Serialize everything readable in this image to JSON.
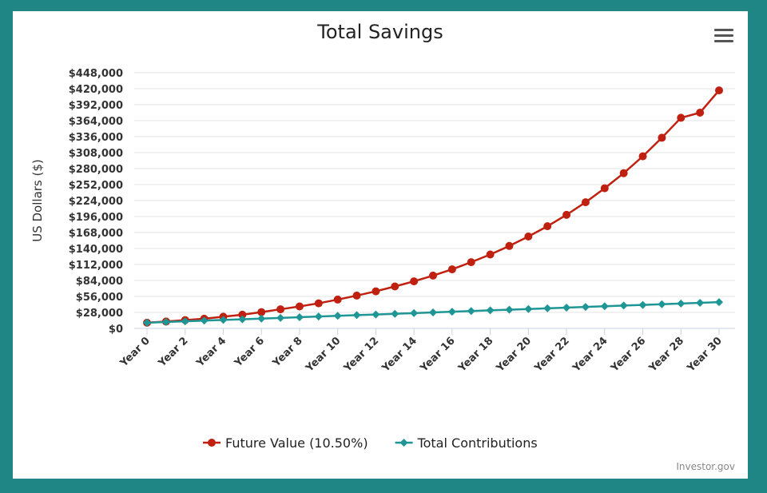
{
  "colors": {
    "frame": "#1f8585",
    "future_value": "#c0200f",
    "contributions": "#1e9696"
  },
  "menu": {
    "icon": "menu-icon"
  },
  "credit": "Investor.gov",
  "chart_data": {
    "type": "line",
    "title": "Total Savings",
    "ylabel": "US Dollars ($)",
    "xlabel": "",
    "ylim": [
      0,
      448000
    ],
    "y_ticks": [
      "$0",
      "$28,000",
      "$56,000",
      "$84,000",
      "$112,000",
      "$140,000",
      "$168,000",
      "$196,000",
      "$224,000",
      "$252,000",
      "$280,000",
      "$308,000",
      "$336,000",
      "$364,000",
      "$392,000",
      "$420,000",
      "$448,000"
    ],
    "x": [
      "Year 0",
      "Year 1",
      "Year 2",
      "Year 3",
      "Year 4",
      "Year 5",
      "Year 6",
      "Year 7",
      "Year 8",
      "Year 9",
      "Year 10",
      "Year 11",
      "Year 12",
      "Year 13",
      "Year 14",
      "Year 15",
      "Year 16",
      "Year 17",
      "Year 18",
      "Year 19",
      "Year 20",
      "Year 21",
      "Year 22",
      "Year 23",
      "Year 24",
      "Year 25",
      "Year 26",
      "Year 27",
      "Year 28",
      "Year 29",
      "Year 30"
    ],
    "x_tick_labels": [
      "Year 0",
      "Year 2",
      "Year 4",
      "Year 6",
      "Year 8",
      "Year 10",
      "Year 12",
      "Year 14",
      "Year 16",
      "Year 18",
      "Year 20",
      "Year 22",
      "Year 24",
      "Year 26",
      "Year 28",
      "Year 30"
    ],
    "legend_position": "bottom-center",
    "grid": true,
    "series": [
      {
        "name": "Future Value (10.50%)",
        "marker": "circle",
        "values": [
          10000,
          12000,
          14500,
          17000,
          20500,
          24000,
          28500,
          33500,
          38500,
          44000,
          50500,
          57500,
          65000,
          73500,
          82500,
          92500,
          103500,
          116000,
          129500,
          144500,
          161000,
          179000,
          199000,
          221000,
          245500,
          272000,
          301500,
          334000,
          369000,
          378000,
          417000
        ]
      },
      {
        "name": "Total Contributions",
        "marker": "diamond",
        "values": [
          10000,
          11200,
          12400,
          13600,
          14800,
          16000,
          17200,
          18400,
          19600,
          20800,
          22000,
          23200,
          24400,
          25600,
          26800,
          28000,
          29200,
          30400,
          31600,
          32800,
          34000,
          35200,
          36400,
          37600,
          38800,
          40000,
          41200,
          42400,
          43600,
          44800,
          46000
        ]
      }
    ]
  }
}
